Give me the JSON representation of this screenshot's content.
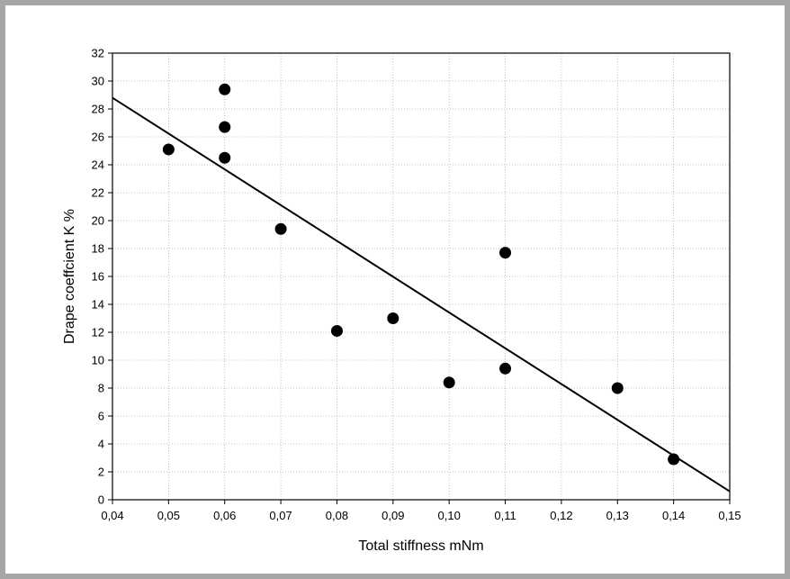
{
  "chart_data": {
    "type": "scatter",
    "title": "",
    "xlabel": "Total stiffness mNm",
    "ylabel": "Drape coeffcient K  %",
    "xlim": [
      0.04,
      0.15
    ],
    "ylim": [
      0,
      32
    ],
    "grid": true,
    "x_ticks": [
      "0,04",
      "0,05",
      "0,06",
      "0,07",
      "0,08",
      "0,09",
      "0,10",
      "0,11",
      "0,12",
      "0,13",
      "0,14",
      "0,15"
    ],
    "x_tick_values": [
      0.04,
      0.05,
      0.06,
      0.07,
      0.08,
      0.09,
      0.1,
      0.11,
      0.12,
      0.13,
      0.14,
      0.15
    ],
    "y_ticks": [
      "0",
      "2",
      "4",
      "6",
      "8",
      "10",
      "12",
      "14",
      "16",
      "18",
      "20",
      "22",
      "24",
      "26",
      "28",
      "30",
      "32"
    ],
    "y_tick_values": [
      0,
      2,
      4,
      6,
      8,
      10,
      12,
      14,
      16,
      18,
      20,
      22,
      24,
      26,
      28,
      30,
      32
    ],
    "points": [
      {
        "x": 0.05,
        "y": 25.1
      },
      {
        "x": 0.06,
        "y": 29.4
      },
      {
        "x": 0.06,
        "y": 26.7
      },
      {
        "x": 0.06,
        "y": 24.5
      },
      {
        "x": 0.07,
        "y": 19.4
      },
      {
        "x": 0.08,
        "y": 12.1
      },
      {
        "x": 0.09,
        "y": 13.0
      },
      {
        "x": 0.1,
        "y": 8.4
      },
      {
        "x": 0.11,
        "y": 17.7
      },
      {
        "x": 0.11,
        "y": 9.4
      },
      {
        "x": 0.13,
        "y": 8.0
      },
      {
        "x": 0.14,
        "y": 2.9
      }
    ],
    "fit_line": {
      "x": [
        0.04,
        0.15
      ],
      "y": [
        28.8,
        0.6
      ]
    },
    "colors": {
      "marker": "#000000",
      "line": "#000000",
      "grid": "#b0b0b0",
      "frame": "#a6a6a6"
    }
  }
}
